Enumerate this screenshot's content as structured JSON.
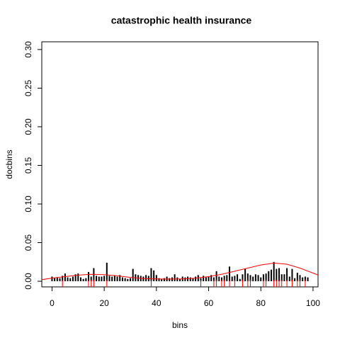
{
  "chart_data": {
    "type": "bar",
    "title": "catastrophic health insurance",
    "x_label": "bins",
    "y_label": "docbins",
    "color": "#000000",
    "x": [
      0,
      1,
      2,
      3,
      4,
      5,
      6,
      7,
      8,
      9,
      10,
      11,
      12,
      13,
      14,
      15,
      16,
      17,
      18,
      19,
      20,
      21,
      22,
      23,
      24,
      25,
      26,
      27,
      28,
      29,
      30,
      31,
      32,
      33,
      34,
      35,
      36,
      37,
      38,
      39,
      40,
      41,
      42,
      43,
      44,
      45,
      46,
      47,
      48,
      49,
      50,
      51,
      52,
      53,
      54,
      55,
      56,
      57,
      58,
      59,
      60,
      61,
      62,
      63,
      64,
      65,
      66,
      67,
      68,
      69,
      70,
      71,
      72,
      73,
      74,
      75,
      76,
      77,
      78,
      79,
      80,
      81,
      82,
      83,
      84,
      85,
      86,
      87,
      88,
      89,
      90,
      91,
      92,
      93,
      94,
      95,
      96,
      97,
      98
    ],
    "values": [
      0.006,
      0.004,
      0.005,
      0.004,
      0.007,
      0.01,
      0.005,
      0.004,
      0.006,
      0.009,
      0.01,
      0.005,
      0.003,
      0.004,
      0.012,
      0.006,
      0.017,
      0.007,
      0.006,
      0.006,
      0.007,
      0.024,
      0.007,
      0.006,
      0.007,
      0.006,
      0.008,
      0.005,
      0.004,
      0.003,
      0.004,
      0.016,
      0.009,
      0.008,
      0.007,
      0.006,
      0.008,
      0.007,
      0.017,
      0.014,
      0.008,
      0.004,
      0.003,
      0.004,
      0.006,
      0.004,
      0.005,
      0.009,
      0.005,
      0.003,
      0.006,
      0.005,
      0.006,
      0.005,
      0.004,
      0.006,
      0.008,
      0.004,
      0.007,
      0.005,
      0.006,
      0.008,
      0.005,
      0.013,
      0.006,
      0.005,
      0.007,
      0.008,
      0.019,
      0.006,
      0.007,
      0.009,
      0.003,
      0.009,
      0.016,
      0.01,
      0.008,
      0.006,
      0.009,
      0.008,
      0.005,
      0.009,
      0.01,
      0.013,
      0.015,
      0.025,
      0.016,
      0.017,
      0.009,
      0.009,
      0.017,
      0.006,
      0.016,
      0.004,
      0.011,
      0.008,
      0.005,
      0.006,
      0.005
    ],
    "density": {
      "color": "#ff0000",
      "x": [
        -4,
        0,
        5,
        10,
        15,
        20,
        25,
        30,
        35,
        40,
        45,
        50,
        55,
        60,
        65,
        70,
        75,
        80,
        85,
        90,
        95,
        102
      ],
      "values": [
        0.002,
        0.004,
        0.006,
        0.008,
        0.009,
        0.0085,
        0.007,
        0.005,
        0.0035,
        0.003,
        0.0028,
        0.003,
        0.004,
        0.006,
        0.009,
        0.013,
        0.017,
        0.021,
        0.0235,
        0.022,
        0.017,
        0.008
      ]
    },
    "rug": {
      "color": "#ff0000",
      "x": [
        4,
        14,
        15,
        16,
        21,
        38,
        57,
        62,
        63,
        65,
        66,
        68,
        70,
        73,
        75,
        76,
        81,
        82,
        85,
        86,
        87,
        88,
        90,
        92,
        94,
        95,
        97
      ]
    },
    "xlim": [
      -3.92,
      101.92
    ],
    "ylim": [
      -0.0073,
      0.31
    ],
    "xticks": [
      0,
      20,
      40,
      60,
      80,
      100
    ],
    "yticks": [
      {
        "value": 0,
        "label": "0.00"
      },
      {
        "value": 0.05,
        "label": "0.05"
      },
      {
        "value": 0.1,
        "label": "0.10"
      },
      {
        "value": 0.15,
        "label": "0.15"
      },
      {
        "value": 0.2,
        "label": "0.20"
      },
      {
        "value": 0.25,
        "label": "0.25"
      },
      {
        "value": 0.3,
        "label": "0.30"
      }
    ]
  }
}
